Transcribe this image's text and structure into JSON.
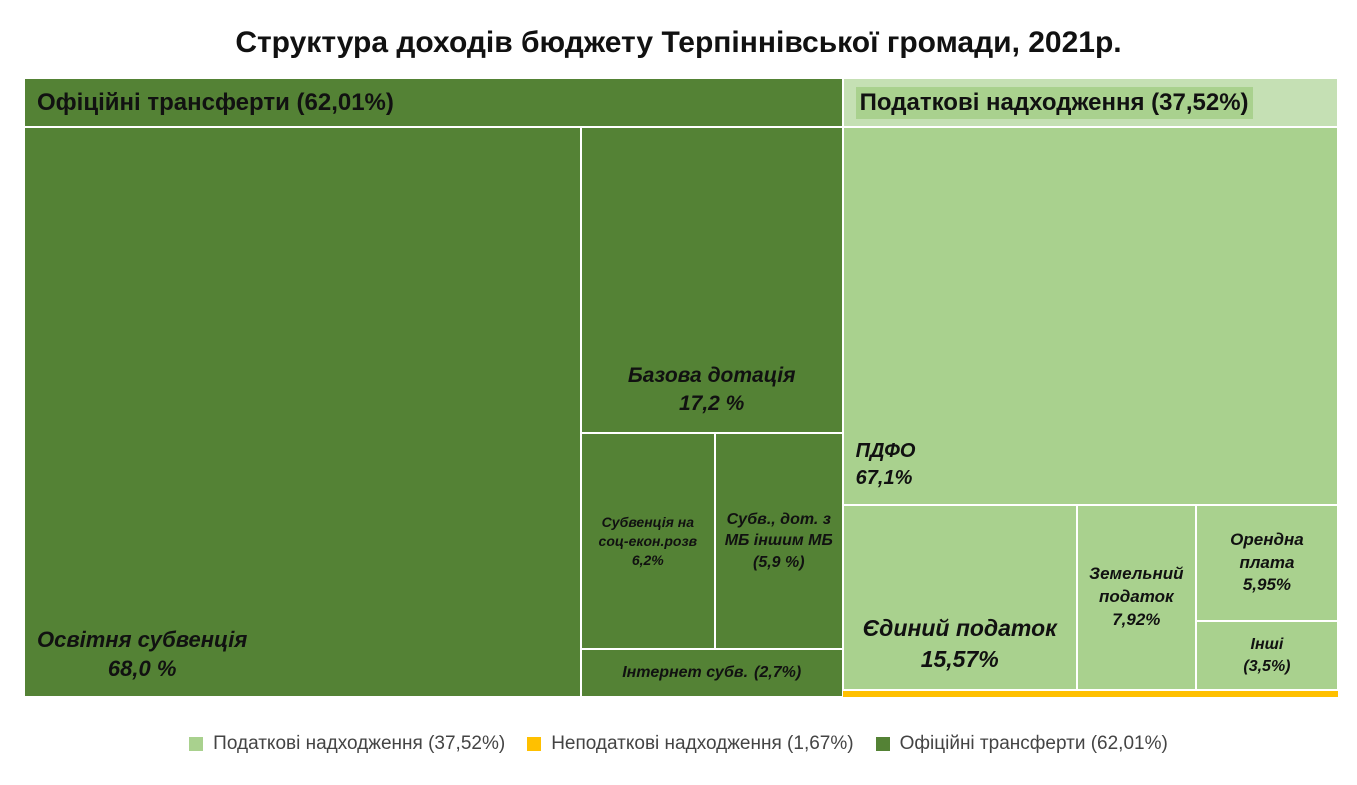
{
  "chart_data": {
    "type": "treemap",
    "title": "Структура доходів бюджету Терпіннівської громади, 2021р.",
    "groups": [
      {
        "name": "Податкові надходження (37,52%)",
        "value": 37.52,
        "color": "#a9d18e",
        "children": [
          {
            "name": "ПДФО",
            "value": 67.1,
            "value_label": "67,1%"
          },
          {
            "name": "Єдиний податок",
            "value": 15.57,
            "value_label": "15,57%"
          },
          {
            "name": "Земельний податок",
            "value": 7.92,
            "value_label": "7,92%"
          },
          {
            "name": "Орендна плата",
            "value": 5.95,
            "value_label": "5,95%"
          },
          {
            "name": "Інші",
            "value": 3.5,
            "value_label": "(3,5%)"
          }
        ]
      },
      {
        "name": "Неподаткові надходження (1,67%)",
        "value": 1.67,
        "color": "#ffc000"
      },
      {
        "name": "Офіційні трансферти (62,01%)",
        "value": 62.01,
        "color": "#548235",
        "children": [
          {
            "name": "Освітня субвенція",
            "value": 68.0,
            "value_label": "68,0 %"
          },
          {
            "name": "Базова дотація",
            "value": 17.2,
            "value_label": "17,2 %"
          },
          {
            "name": "Субвенція на соц-екон.розв",
            "value": 6.2,
            "value_label": "6,2%"
          },
          {
            "name": "Субв., дот. з МБ іншим МБ",
            "value": 5.9,
            "value_label": "(5,9 %)"
          },
          {
            "name": "Інтернет субв.",
            "value": 2.7,
            "value_label": "(2,7%)"
          }
        ]
      }
    ]
  }
}
